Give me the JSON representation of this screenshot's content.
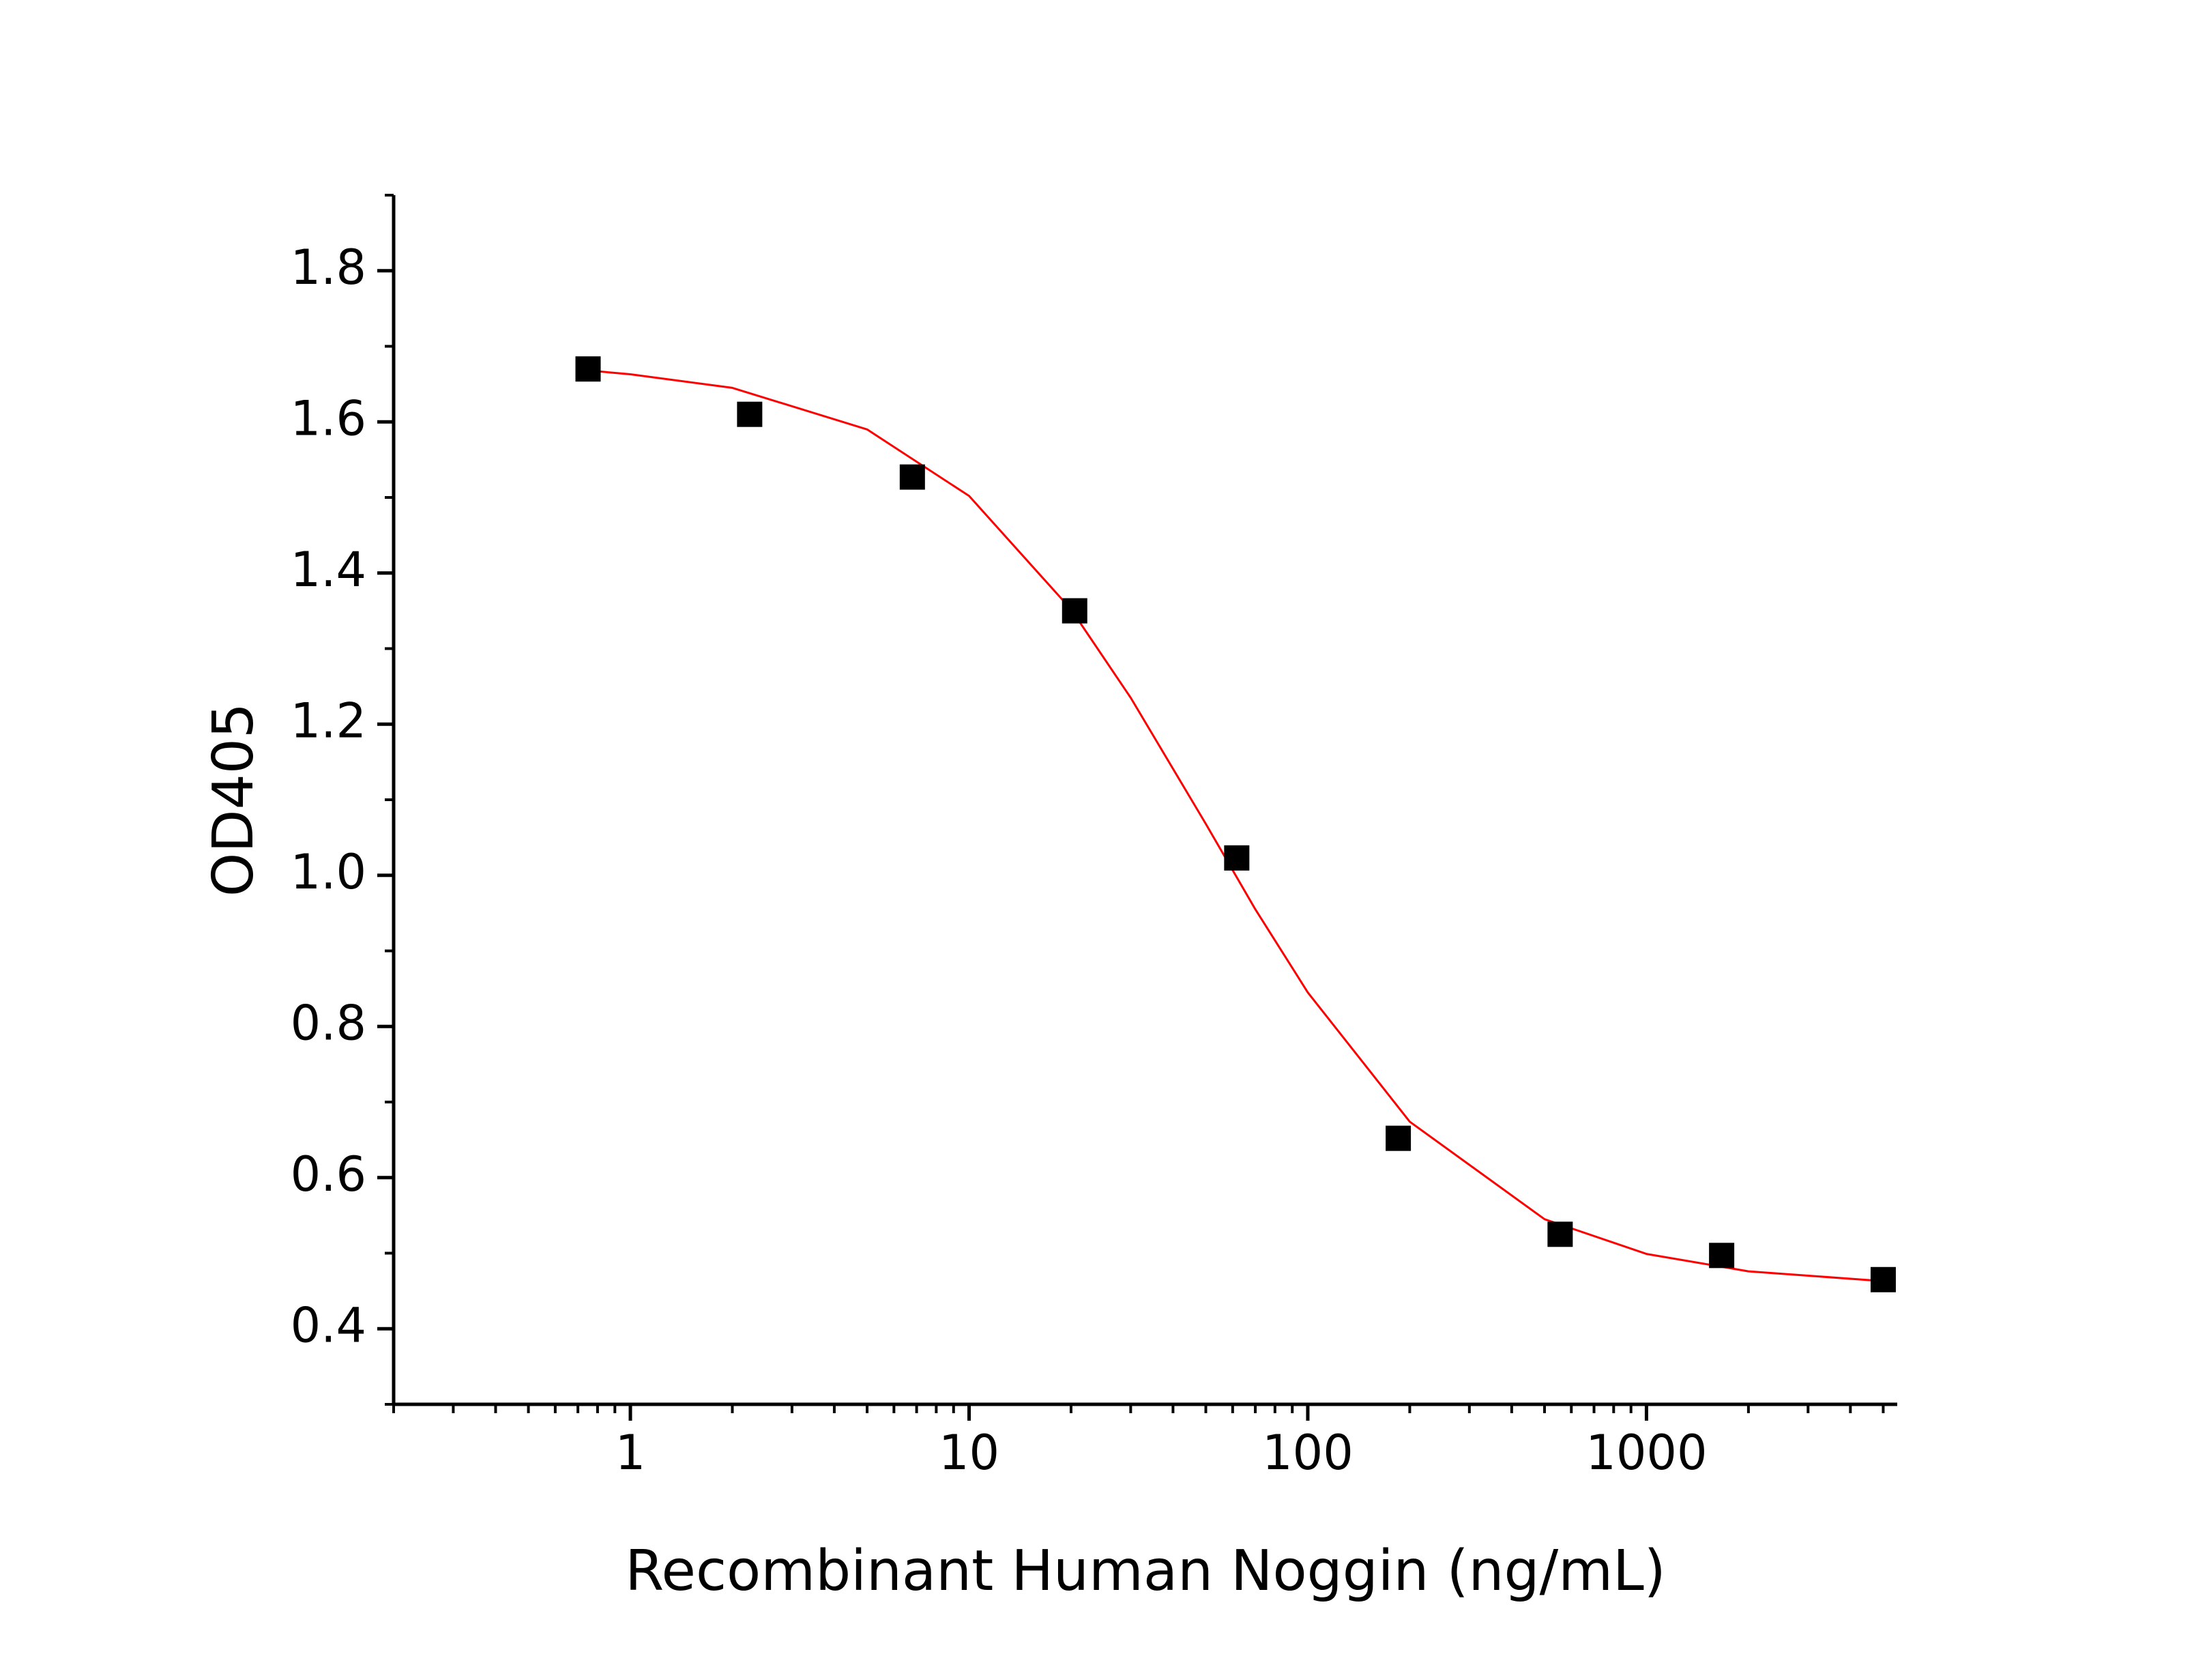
{
  "chart_data": {
    "type": "scatter",
    "x_label": "Recombinant Human Noggin (ng/mL)",
    "y_label": "OD405",
    "x_scale": "log",
    "xlim": [
      0.2,
      5500
    ],
    "xticks": [
      1,
      10,
      100,
      1000
    ],
    "ylim": [
      0.3,
      1.9
    ],
    "yticks": [
      0.4,
      0.6,
      0.8,
      {
        "value": 1,
        "label": "1.0"
      },
      1.2,
      1.4,
      1.6,
      1.8
    ],
    "grid": false,
    "series": [
      {
        "type": "scatter",
        "marker": "square",
        "color": "#000000",
        "x": [
          0.75,
          2.25,
          6.8,
          20.5,
          61.7,
          185,
          556,
          1667,
          5000
        ],
        "values": [
          1.67,
          1.61,
          1.527,
          1.35,
          1.023,
          0.652,
          0.525,
          0.497,
          0.465
        ]
      },
      {
        "type": "line",
        "color": "#ff0000",
        "x": [
          0.75,
          1,
          2,
          5,
          10,
          20,
          30,
          50,
          70,
          100,
          200,
          500,
          1000,
          2000,
          5000
        ],
        "values": [
          1.668,
          1.663,
          1.645,
          1.59,
          1.502,
          1.352,
          1.235,
          1.068,
          0.955,
          0.845,
          0.674,
          0.545,
          0.499,
          0.476,
          0.463
        ]
      }
    ]
  }
}
